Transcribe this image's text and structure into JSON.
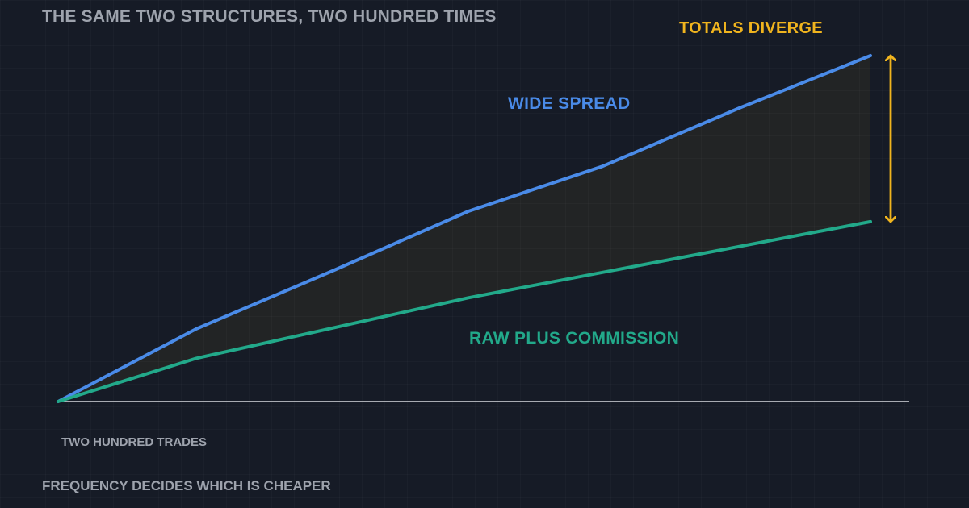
{
  "title": "THE SAME TWO STRUCTURES, TWO HUNDRED TIMES",
  "footer": "FREQUENCY DECIDES WHICH IS CHEAPER",
  "colors": {
    "background": "#161b26",
    "wide_spread": "#4a8be8",
    "raw_plus_commission": "#22a98a",
    "divergence": "#f0b41e",
    "muted_text": "#9ea3ad",
    "baseline": "#d8dbe0"
  },
  "chart_data": {
    "type": "line",
    "xlabel": "TWO HUNDRED TRADES",
    "ylabel": "",
    "grid": true,
    "axes_ticks": false,
    "xlim": [
      0,
      200
    ],
    "ylim": [
      0,
      100
    ],
    "series": [
      {
        "name": "WIDE SPREAD",
        "color": "#4a8be8",
        "x": [
          0,
          34,
          68,
          101,
          134,
          168,
          200
        ],
        "y": [
          0,
          21,
          38,
          55,
          68,
          85,
          100
        ]
      },
      {
        "name": "RAW PLUS COMMISSION",
        "color": "#22a98a",
        "x": [
          0,
          34,
          101,
          200
        ],
        "y": [
          0,
          12.5,
          30,
          52
        ]
      }
    ],
    "annotations": [
      {
        "text": "TOTALS DIVERGE",
        "type": "double-arrow",
        "at_x": 200,
        "from_y": 52,
        "to_y": 100,
        "color": "#f0b41e"
      }
    ]
  }
}
